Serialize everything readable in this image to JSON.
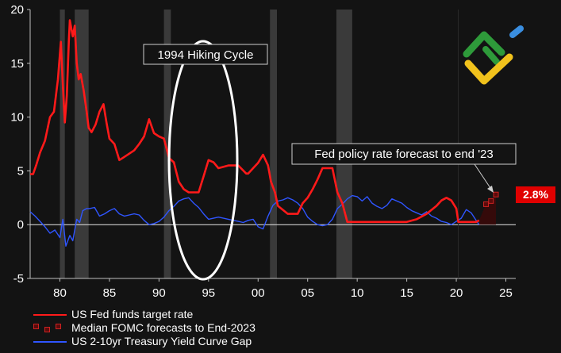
{
  "colors": {
    "background": "#131313",
    "fed_funds": "#ff1a1a",
    "forecast": "#cc2222",
    "curve": "#2f55ff",
    "recession": "#3a3a3a",
    "value_box": "#e00000"
  },
  "icons": {
    "logo": "green-yellow-blue-brand-logo-icon"
  },
  "annotations": {
    "cycle": "1994 Hiking Cycle",
    "forecast": "Fed policy rate forecast to end '23",
    "value": "2.8%"
  },
  "legend": {
    "fed_funds": "US Fed funds target rate",
    "forecast": "Median FOMC forecasts to End-2023",
    "curve": "US 2-10yr Treasury Yield Curve Gap"
  },
  "chart_data": {
    "type": "line",
    "xlabel": "",
    "ylabel": "",
    "xlim": [
      1977,
      2026
    ],
    "ylim": [
      -5,
      20
    ],
    "x_ticks": [
      80,
      85,
      90,
      95,
      0,
      5,
      10,
      15,
      20,
      25
    ],
    "x_tick_labels": [
      "80",
      "85",
      "90",
      "95",
      "00",
      "05",
      "10",
      "15",
      "20",
      "25"
    ],
    "y_ticks": [
      -5,
      0,
      5,
      10,
      15,
      20
    ],
    "y_tick_labels": [
      "-5",
      "0",
      "5",
      "10",
      "15",
      "20"
    ],
    "grid": false,
    "recession_bands": [
      [
        1980.0,
        1980.5
      ],
      [
        1981.5,
        1982.9
      ],
      [
        1990.5,
        1991.2
      ],
      [
        2001.2,
        2001.9
      ],
      [
        2007.9,
        2009.5
      ]
    ],
    "series": [
      {
        "name": "US Fed funds target rate",
        "x": [
          1977,
          1977.3,
          1977.6,
          1978,
          1978.5,
          1979,
          1979.4,
          1979.8,
          1980.1,
          1980.3,
          1980.5,
          1980.7,
          1980.9,
          1981,
          1981.3,
          1981.5,
          1981.7,
          1981.9,
          1982.1,
          1982.4,
          1982.7,
          1982.9,
          1983.2,
          1983.6,
          1984,
          1984.4,
          1984.7,
          1985,
          1985.5,
          1986,
          1986.5,
          1987,
          1987.5,
          1988,
          1988.5,
          1989,
          1989.5,
          1990,
          1990.5,
          1991,
          1991.5,
          1992,
          1992.5,
          1993,
          1993.5,
          1994,
          1994.5,
          1995,
          1995.5,
          1996,
          1997,
          1998,
          1998.8,
          1999,
          1999.5,
          2000,
          2000.5,
          2001,
          2001.3,
          2001.7,
          2002,
          2003,
          2004,
          2004.5,
          2005,
          2005.5,
          2006,
          2006.5,
          2007,
          2007.5,
          2008,
          2008.5,
          2009,
          2015,
          2016,
          2017,
          2018,
          2018.5,
          2019,
          2019.5,
          2020,
          2020.2,
          2022,
          2022.3
        ],
        "values": [
          4.7,
          4.7,
          5.5,
          6.7,
          7.8,
          10.0,
          10.5,
          13.5,
          17.0,
          13.0,
          9.5,
          12.0,
          17.0,
          19.0,
          17.5,
          18.5,
          15.0,
          13.5,
          14.0,
          12.5,
          10.5,
          9.0,
          8.6,
          9.3,
          10.5,
          11.2,
          9.5,
          8.0,
          7.5,
          6.0,
          6.3,
          6.6,
          6.9,
          7.5,
          8.2,
          9.8,
          8.5,
          8.2,
          8.0,
          6.2,
          5.8,
          4.0,
          3.3,
          3.0,
          3.0,
          3.0,
          4.5,
          6.0,
          5.8,
          5.25,
          5.5,
          5.5,
          4.75,
          4.75,
          5.25,
          5.75,
          6.5,
          5.5,
          4.0,
          3.0,
          1.75,
          1.0,
          1.0,
          2.0,
          2.5,
          3.3,
          4.2,
          5.25,
          5.25,
          5.25,
          3.0,
          2.0,
          0.25,
          0.25,
          0.5,
          1.0,
          1.75,
          2.25,
          2.5,
          2.25,
          1.5,
          0.25,
          0.25,
          0.4
        ]
      },
      {
        "name": "Median FOMC forecasts to End-2023",
        "x": [
          2022.3,
          2023.0,
          2023.5,
          2024.0
        ],
        "values": [
          0.4,
          1.9,
          2.2,
          2.8
        ]
      },
      {
        "name": "US 2-10yr Treasury Yield Curve Gap",
        "x": [
          1977,
          1977.5,
          1978,
          1978.5,
          1979,
          1979.5,
          1980,
          1980.3,
          1980.6,
          1981,
          1981.3,
          1981.7,
          1982,
          1982.3,
          1982.7,
          1983,
          1983.5,
          1984,
          1984.5,
          1985,
          1985.5,
          1986,
          1986.5,
          1987,
          1987.5,
          1988,
          1988.5,
          1989,
          1989.5,
          1990,
          1990.5,
          1991,
          1991.5,
          1992,
          1992.5,
          1993,
          1993.5,
          1994,
          1994.5,
          1995,
          1995.5,
          1996,
          1996.5,
          1997,
          1997.5,
          1998,
          1998.5,
          1999,
          1999.5,
          2000,
          2000.5,
          2001,
          2001.5,
          2002,
          2002.5,
          2003,
          2003.5,
          2004,
          2004.5,
          2005,
          2005.5,
          2006,
          2006.5,
          2007,
          2007.5,
          2008,
          2008.5,
          2009,
          2009.5,
          2010,
          2010.5,
          2011,
          2011.5,
          2012,
          2012.5,
          2013,
          2013.5,
          2014,
          2014.5,
          2015,
          2015.5,
          2016,
          2016.5,
          2017,
          2017.5,
          2018,
          2018.5,
          2019,
          2019.5,
          2020,
          2020.5,
          2021,
          2021.5,
          2022,
          2022.3
        ],
        "values": [
          1.2,
          0.8,
          0.3,
          -0.2,
          -0.8,
          -0.5,
          -1.2,
          0.5,
          -2.0,
          -1.0,
          -1.5,
          0.5,
          0.2,
          1.3,
          1.5,
          1.5,
          1.6,
          0.8,
          1.0,
          1.3,
          1.5,
          1.0,
          0.8,
          0.9,
          1.0,
          0.9,
          0.4,
          0.0,
          0.1,
          0.3,
          0.7,
          1.3,
          1.7,
          2.2,
          2.4,
          2.5,
          2.0,
          1.6,
          1.0,
          0.5,
          0.6,
          0.7,
          0.6,
          0.5,
          0.4,
          0.3,
          0.2,
          0.4,
          0.5,
          -0.2,
          -0.4,
          0.8,
          1.8,
          2.2,
          2.3,
          2.5,
          2.3,
          2.0,
          1.5,
          0.7,
          0.3,
          0.0,
          -0.1,
          0.0,
          0.5,
          1.5,
          1.9,
          2.4,
          2.7,
          2.6,
          2.2,
          2.6,
          2.0,
          1.7,
          1.5,
          1.8,
          2.4,
          2.2,
          2.0,
          1.6,
          1.3,
          1.1,
          0.9,
          1.2,
          0.8,
          0.6,
          0.3,
          0.2,
          0.0,
          0.3,
          0.6,
          1.4,
          1.1,
          0.4,
          0.0
        ]
      }
    ]
  }
}
